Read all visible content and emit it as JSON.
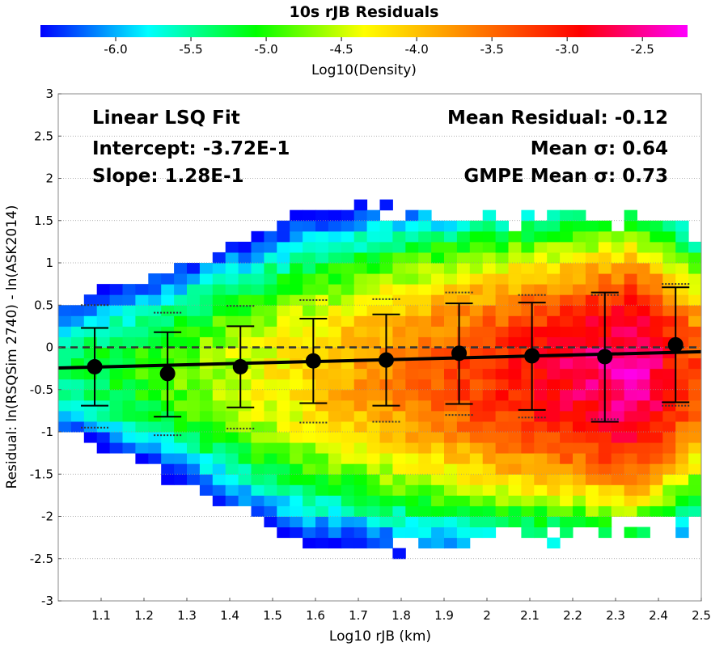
{
  "chart_data": {
    "type": "heatmap",
    "title": "10s rJB Residuals",
    "colorbar": {
      "label": "Log10(Density)",
      "range": [
        -6.5,
        -2.2
      ],
      "ticks": [
        "-6.0",
        "-5.5",
        "-5.0",
        "-4.5",
        "-4.0",
        "-3.5",
        "-3.0",
        "-2.5"
      ],
      "tick_values": [
        -6.0,
        -5.5,
        -5.0,
        -4.5,
        -4.0,
        -3.5,
        -3.0,
        -2.5
      ],
      "colors": [
        "#0000ff",
        "#00ffff",
        "#00ff00",
        "#ffff00",
        "#ff8000",
        "#ff0000",
        "#ff00ff"
      ]
    },
    "xlabel": "Log10 rJB (km)",
    "ylabel": "Residual: ln(RSQSim 2740) - ln(ASK2014)",
    "xlim": [
      1.0,
      2.5
    ],
    "ylim": [
      -3,
      3
    ],
    "xticks": [
      "1.1",
      "1.2",
      "1.3",
      "1.4",
      "1.5",
      "1.6",
      "1.7",
      "1.8",
      "1.9",
      "2",
      "2.1",
      "2.2",
      "2.3",
      "2.4",
      "2.5"
    ],
    "xtick_values": [
      1.1,
      1.2,
      1.3,
      1.4,
      1.5,
      1.6,
      1.7,
      1.8,
      1.9,
      2.0,
      2.1,
      2.2,
      2.3,
      2.4,
      2.5
    ],
    "yticks": [
      "-3",
      "-2.5",
      "-2",
      "-1.5",
      "-1",
      "-0.5",
      "0",
      "0.5",
      "1",
      "1.5",
      "2",
      "2.5",
      "3"
    ],
    "ytick_values": [
      -3,
      -2.5,
      -2,
      -1.5,
      -1,
      -0.5,
      0,
      0.5,
      1,
      1.5,
      2,
      2.5,
      3
    ],
    "grid": true,
    "annotations_left": [
      "Linear LSQ Fit",
      "Intercept: -3.72E-1",
      "Slope: 1.28E-1"
    ],
    "annotations_right": [
      "Mean Residual: -0.12",
      "Mean σ: 0.64",
      "GMPE Mean σ: 0.73"
    ],
    "fit_line": {
      "intercept": -0.372,
      "slope": 0.128
    },
    "zero_line": 0,
    "heatmap_grid": {
      "x_start": 1.0,
      "x_step": 0.03,
      "x_count": 50,
      "y_start": -3.0,
      "y_step": 0.125,
      "y_count": 48
    },
    "heatmap_band": {
      "x": [
        1.0,
        2.5
      ],
      "y": [
        -2.1,
        1.4
      ],
      "spread": [
        1.0,
        1.5,
        2.0,
        2.4,
        2.4,
        2.3,
        2.2,
        2.1,
        2.0
      ]
    },
    "heatmap_peak": {
      "x": [
        1.0,
        2.35,
        2.5
      ],
      "y": [
        -5.4,
        -2.4,
        -3.4
      ]
    },
    "bins": [
      {
        "x": 1.085,
        "mean": -0.23,
        "std_low": -0.69,
        "std_high": 0.23,
        "gmpe_low": -0.95,
        "gmpe_high": 0.5
      },
      {
        "x": 1.255,
        "mean": -0.31,
        "std_low": -0.82,
        "std_high": 0.18,
        "gmpe_low": -1.04,
        "gmpe_high": 0.41
      },
      {
        "x": 1.425,
        "mean": -0.23,
        "std_low": -0.71,
        "std_high": 0.25,
        "gmpe_low": -0.96,
        "gmpe_high": 0.49
      },
      {
        "x": 1.595,
        "mean": -0.16,
        "std_low": -0.66,
        "std_high": 0.34,
        "gmpe_low": -0.89,
        "gmpe_high": 0.56
      },
      {
        "x": 1.765,
        "mean": -0.15,
        "std_low": -0.69,
        "std_high": 0.39,
        "gmpe_low": -0.88,
        "gmpe_high": 0.57
      },
      {
        "x": 1.935,
        "mean": -0.07,
        "std_low": -0.67,
        "std_high": 0.52,
        "gmpe_low": -0.8,
        "gmpe_high": 0.65
      },
      {
        "x": 2.105,
        "mean": -0.1,
        "std_low": -0.74,
        "std_high": 0.53,
        "gmpe_low": -0.83,
        "gmpe_high": 0.62
      },
      {
        "x": 2.275,
        "mean": -0.11,
        "std_low": -0.88,
        "std_high": 0.65,
        "gmpe_low": -0.85,
        "gmpe_high": 0.62
      },
      {
        "x": 2.44,
        "mean": 0.03,
        "std_low": -0.65,
        "std_high": 0.71,
        "gmpe_low": -0.69,
        "gmpe_high": 0.75
      }
    ]
  }
}
